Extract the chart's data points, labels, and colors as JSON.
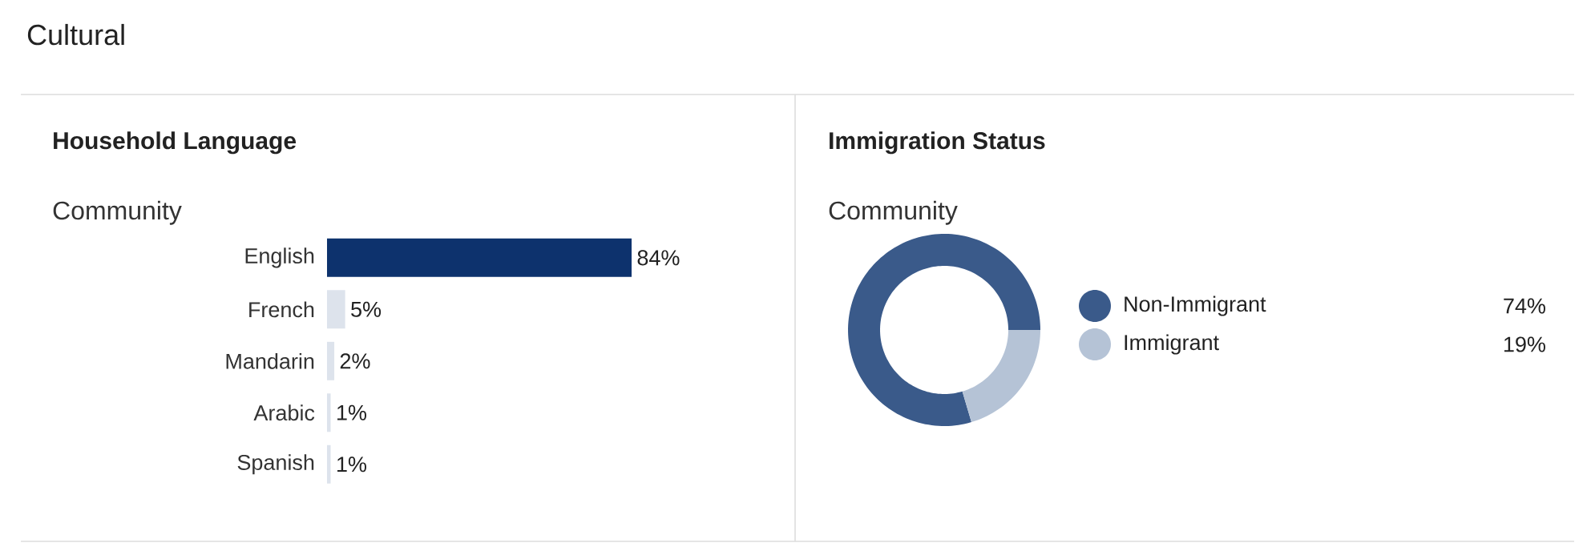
{
  "chart_data": [
    {
      "type": "bar",
      "title": "Household Language",
      "subtitle": "Community",
      "annotations": [
        "Cultural"
      ],
      "orientation": "horizontal",
      "categories": [
        "English",
        "French",
        "Mandarin",
        "Arabic",
        "Spanish"
      ],
      "values": [
        84,
        5,
        2,
        1,
        1
      ],
      "colors": [
        "#0d326d",
        "#dde3ec",
        "#dde3ec",
        "#dde3ec",
        "#dde3ec"
      ],
      "value_labels": [
        "84%",
        "5%",
        "2%",
        "1%",
        "1%"
      ]
    },
    {
      "type": "donut",
      "title": "Immigration Status",
      "subtitle": "Community",
      "legend": "right",
      "categories": [
        "Non-Immigrant",
        "Immigrant"
      ],
      "values": [
        74,
        19
      ],
      "colors": [
        "#3a5a8a",
        "#b5c3d6"
      ],
      "value_labels": [
        "74%",
        "19%"
      ]
    }
  ]
}
